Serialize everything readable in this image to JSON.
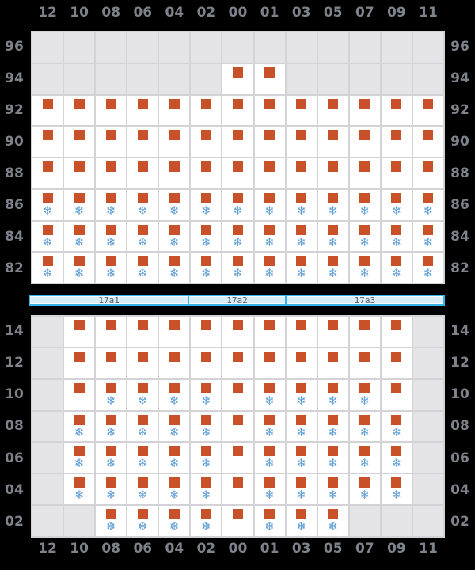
{
  "colors": {
    "background": "#000000",
    "grid_line": "#d3d3d7",
    "cell_empty": "#e4e4e6",
    "cell_filled": "#ffffff",
    "marker_orange": "#c8512a",
    "snowflake_blue": "#5b9bd3",
    "axis_label": "#7d828b",
    "bar_fill": "#daeef9",
    "bar_border": "#36b3e8",
    "bar_text": "#555a60"
  },
  "icons": {
    "occupied_marker": "square",
    "snowflake": "❄"
  },
  "cell_state_legend": {
    "0": "empty",
    "1": "square",
    "2": "square+snowflake"
  },
  "columns": [
    "12",
    "10",
    "08",
    "06",
    "04",
    "02",
    "00",
    "01",
    "03",
    "05",
    "07",
    "09",
    "11"
  ],
  "top_panel": {
    "rows": [
      {
        "label": "96",
        "cells": [
          0,
          0,
          0,
          0,
          0,
          0,
          0,
          0,
          0,
          0,
          0,
          0,
          0
        ]
      },
      {
        "label": "94",
        "cells": [
          0,
          0,
          0,
          0,
          0,
          0,
          1,
          1,
          0,
          0,
          0,
          0,
          0
        ]
      },
      {
        "label": "92",
        "cells": [
          1,
          1,
          1,
          1,
          1,
          1,
          1,
          1,
          1,
          1,
          1,
          1,
          1
        ]
      },
      {
        "label": "90",
        "cells": [
          1,
          1,
          1,
          1,
          1,
          1,
          1,
          1,
          1,
          1,
          1,
          1,
          1
        ]
      },
      {
        "label": "88",
        "cells": [
          1,
          1,
          1,
          1,
          1,
          1,
          1,
          1,
          1,
          1,
          1,
          1,
          1
        ]
      },
      {
        "label": "86",
        "cells": [
          2,
          2,
          2,
          2,
          2,
          2,
          2,
          2,
          2,
          2,
          2,
          2,
          2
        ]
      },
      {
        "label": "84",
        "cells": [
          2,
          2,
          2,
          2,
          2,
          2,
          2,
          2,
          2,
          2,
          2,
          2,
          2
        ]
      },
      {
        "label": "82",
        "cells": [
          2,
          2,
          2,
          2,
          2,
          2,
          2,
          2,
          2,
          2,
          2,
          2,
          2
        ]
      }
    ]
  },
  "separator_bar": {
    "segments": [
      {
        "label": "17a1",
        "weight": 202
      },
      {
        "label": "17a2",
        "weight": 122
      },
      {
        "label": "17a3",
        "weight": 201
      }
    ]
  },
  "bottom_panel": {
    "rows": [
      {
        "label": "14",
        "cells": [
          0,
          1,
          1,
          1,
          1,
          1,
          1,
          1,
          1,
          1,
          1,
          1,
          0
        ]
      },
      {
        "label": "12",
        "cells": [
          0,
          1,
          1,
          1,
          1,
          1,
          1,
          1,
          1,
          1,
          1,
          1,
          0
        ]
      },
      {
        "label": "10",
        "cells": [
          0,
          1,
          2,
          2,
          2,
          2,
          1,
          2,
          2,
          2,
          2,
          1,
          0
        ]
      },
      {
        "label": "08",
        "cells": [
          0,
          2,
          2,
          2,
          2,
          2,
          1,
          2,
          2,
          2,
          2,
          2,
          0
        ]
      },
      {
        "label": "06",
        "cells": [
          0,
          2,
          2,
          2,
          2,
          2,
          1,
          2,
          2,
          2,
          2,
          2,
          0
        ]
      },
      {
        "label": "04",
        "cells": [
          0,
          2,
          2,
          2,
          2,
          2,
          1,
          2,
          2,
          2,
          2,
          2,
          0
        ]
      },
      {
        "label": "02",
        "cells": [
          0,
          0,
          2,
          2,
          2,
          2,
          1,
          2,
          2,
          2,
          0,
          0,
          0
        ]
      }
    ]
  }
}
